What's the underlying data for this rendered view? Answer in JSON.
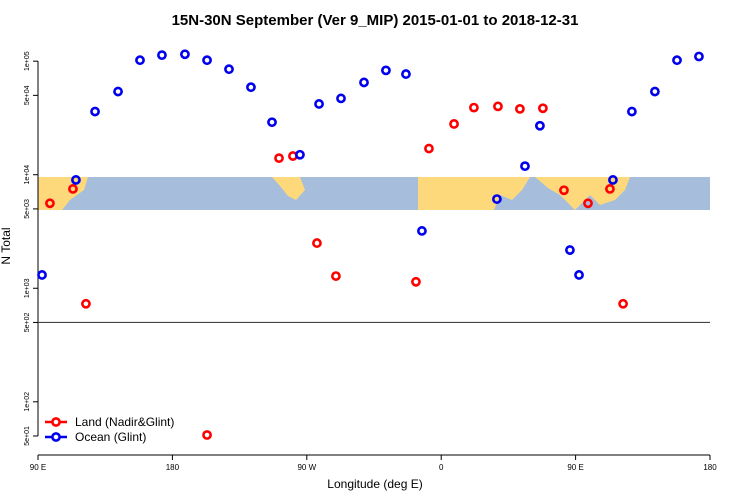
{
  "chart_data": {
    "type": "scatter",
    "title": "15N-30N September (Ver 9_MIP)   2015-01-01 to 2018-12-31",
    "xlabel": "Longitude (deg E)",
    "ylabel": "N Total",
    "ylog": true,
    "xlim": [
      90,
      540
    ],
    "ylim": [
      34,
      160000
    ],
    "xticks": [
      {
        "value": 90,
        "label": "90 E"
      },
      180,
      {
        "value": 270,
        "label": "90 W"
      },
      {
        "value": 360,
        "label": "0"
      },
      {
        "value": 450,
        "label": "90 E"
      },
      {
        "value": 540,
        "label": "180"
      }
    ],
    "yticks": [
      {
        "value": 50,
        "label": "5e+01"
      },
      {
        "value": 100,
        "label": "1e+02"
      },
      {
        "value": 500,
        "label": "5e+02"
      },
      {
        "value": 1000,
        "label": "1e+03"
      },
      {
        "value": 5000,
        "label": "5e+03"
      },
      {
        "value": 10000,
        "label": "1e+04"
      },
      {
        "value": 50000,
        "label": "5e+04"
      },
      {
        "value": 100000,
        "label": "1e+05"
      }
    ],
    "reference_line": 500,
    "legend": "bottom-left",
    "series": [
      {
        "name": "Land (Nadir&Glint)",
        "color": "#ff0000",
        "x": [
          98,
          113.4,
          122.1,
          203.2,
          251.4,
          260.7,
          276.8,
          289.5,
          343.1,
          351.8,
          368.6,
          381.9,
          398,
          412.7,
          428.1,
          442.2,
          458.3,
          473,
          481.8
        ],
        "values": [
          5600,
          7500,
          730,
          51,
          14000,
          14600,
          2500,
          1280,
          1140,
          17000,
          28000,
          39000,
          40000,
          38000,
          38500,
          7300,
          5600,
          7500,
          730
        ]
      },
      {
        "name": "Ocean (Glint)",
        "color": "#0000ee",
        "x": [
          92.7,
          115.4,
          128.2,
          143.6,
          158.3,
          173,
          188.4,
          203.2,
          217.9,
          232.6,
          246.7,
          265.4,
          278.2,
          292.9,
          308.3,
          323,
          336.4,
          347.1,
          397.3,
          416.1,
          426.1,
          446.2,
          452.3,
          475,
          487.7,
          503.1,
          517.9,
          532.6
        ],
        "values": [
          1310,
          9000,
          36000,
          54000,
          102000,
          113000,
          115000,
          102000,
          85000,
          59000,
          29000,
          15000,
          42000,
          47000,
          65000,
          83000,
          77000,
          3200,
          6100,
          11900,
          27000,
          2170,
          1310,
          9000,
          36000,
          54000,
          102000,
          110000
        ]
      }
    ]
  }
}
